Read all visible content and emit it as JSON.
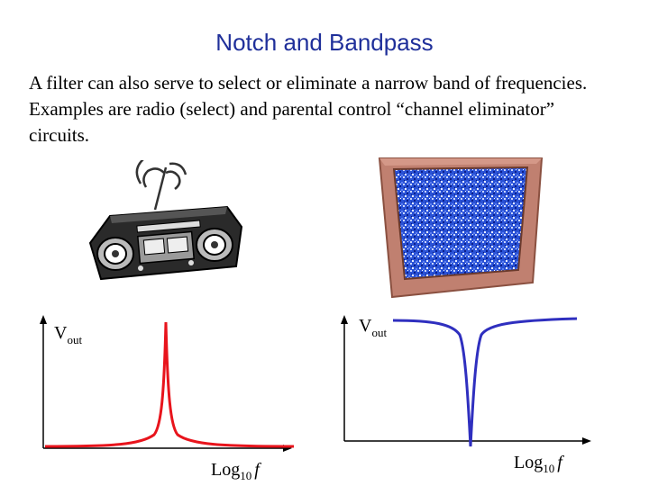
{
  "slide": {
    "title": "Notch and Bandpass",
    "body": "A filter can also serve to select or eliminate a narrow band of frequencies.  Examples are radio (select) and parental control “channel eliminator”  circuits."
  },
  "images": {
    "radio": "boombox-radio-icon",
    "tv": "static-tv-icon"
  },
  "chart_data": [
    {
      "type": "line",
      "title": "",
      "ylabel": "V",
      "ylabel_sub": "out",
      "xlabel": "Log",
      "xlabel_sub": "10",
      "xlabel_var": "f",
      "series": [
        {
          "color": "#e8141c",
          "shape": "bandpass-peak"
        }
      ]
    },
    {
      "type": "line",
      "title": "",
      "ylabel": "V",
      "ylabel_sub": "out",
      "xlabel": "Log",
      "xlabel_sub": "10",
      "xlabel_var": "f",
      "series": [
        {
          "color": "#2f2fbf",
          "shape": "notch-dip"
        }
      ]
    }
  ]
}
